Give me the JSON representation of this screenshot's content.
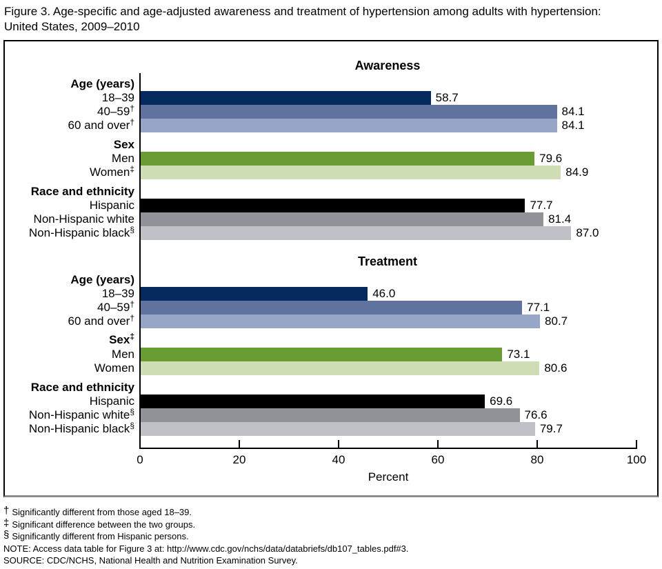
{
  "title": {
    "line1": "Figure 3. Age-specific and age-adjusted awareness and treatment of hypertension among adults with hypertension:",
    "line2": "United States, 2009–2010"
  },
  "colors": {
    "age_18_39": "#042a5e",
    "age_40_59": "#5f739e",
    "age_60_over": "#97a5c6",
    "men": "#6a9c34",
    "women": "#cfddb5",
    "hispanic": "#000000",
    "nh_white": "#919297",
    "nh_black": "#bfc1c7",
    "axis": "#000000",
    "box_border": "#000000",
    "box_bottom_border": "#8c8c8c"
  },
  "chart_data": {
    "type": "bar",
    "orientation": "horizontal",
    "xlabel": "Percent",
    "xlim": [
      0,
      100
    ],
    "xticks": [
      0,
      20,
      40,
      60,
      80,
      100
    ],
    "grid": false,
    "value_labels": "outside-end, one decimal",
    "sections": [
      {
        "title": "Awareness",
        "groups": [
          {
            "header": "Age (years)",
            "header_sup": "",
            "rows": [
              {
                "label": "18–39",
                "sup": "",
                "value": 58.7,
                "color_key": "age_18_39"
              },
              {
                "label": "40–59",
                "sup": "†",
                "value": 84.1,
                "color_key": "age_40_59"
              },
              {
                "label": "60 and over",
                "sup": "†",
                "value": 84.1,
                "color_key": "age_60_over"
              }
            ]
          },
          {
            "header": "Sex",
            "header_sup": "",
            "rows": [
              {
                "label": "Men",
                "sup": "",
                "value": 79.6,
                "color_key": "men"
              },
              {
                "label": "Women",
                "sup": "‡",
                "value": 84.9,
                "color_key": "women"
              }
            ]
          },
          {
            "header": "Race and ethnicity",
            "header_sup": "",
            "rows": [
              {
                "label": "Hispanic",
                "sup": "",
                "value": 77.7,
                "color_key": "hispanic"
              },
              {
                "label": "Non-Hispanic white",
                "sup": "",
                "value": 81.4,
                "color_key": "nh_white"
              },
              {
                "label": "Non-Hispanic black",
                "sup": "§",
                "value": 87.0,
                "color_key": "nh_black"
              }
            ]
          }
        ]
      },
      {
        "title": "Treatment",
        "groups": [
          {
            "header": "Age (years)",
            "header_sup": "",
            "rows": [
              {
                "label": "18–39",
                "sup": "",
                "value": 46.0,
                "color_key": "age_18_39"
              },
              {
                "label": "40–59",
                "sup": "†",
                "value": 77.1,
                "color_key": "age_40_59"
              },
              {
                "label": "60 and over",
                "sup": "†",
                "value": 80.7,
                "color_key": "age_60_over"
              }
            ]
          },
          {
            "header": "Sex",
            "header_sup": "‡",
            "rows": [
              {
                "label": "Men",
                "sup": "",
                "value": 73.1,
                "color_key": "men"
              },
              {
                "label": "Women",
                "sup": "",
                "value": 80.6,
                "color_key": "women"
              }
            ]
          },
          {
            "header": "Race and ethnicity",
            "header_sup": "",
            "rows": [
              {
                "label": "Hispanic",
                "sup": "",
                "value": 69.6,
                "color_key": "hispanic"
              },
              {
                "label": "Non-Hispanic white",
                "sup": "§",
                "value": 76.6,
                "color_key": "nh_white"
              },
              {
                "label": "Non-Hispanic black",
                "sup": "§",
                "value": 79.7,
                "color_key": "nh_black"
              }
            ]
          }
        ]
      }
    ]
  },
  "footnotes": [
    {
      "symbol": "†",
      "text": "Significantly different from those aged 18–39."
    },
    {
      "symbol": "‡",
      "text": "Significant difference between the two groups."
    },
    {
      "symbol": "§",
      "text": "Significantly different from Hispanic persons."
    },
    {
      "symbol": "",
      "text": "NOTE: Access data table for Figure 3 at: http://www.cdc.gov/nchs/data/databriefs/db107_tables.pdf#3."
    },
    {
      "symbol": "",
      "text": "SOURCE: CDC/NCHS, National Health and Nutrition Examination Survey."
    }
  ]
}
